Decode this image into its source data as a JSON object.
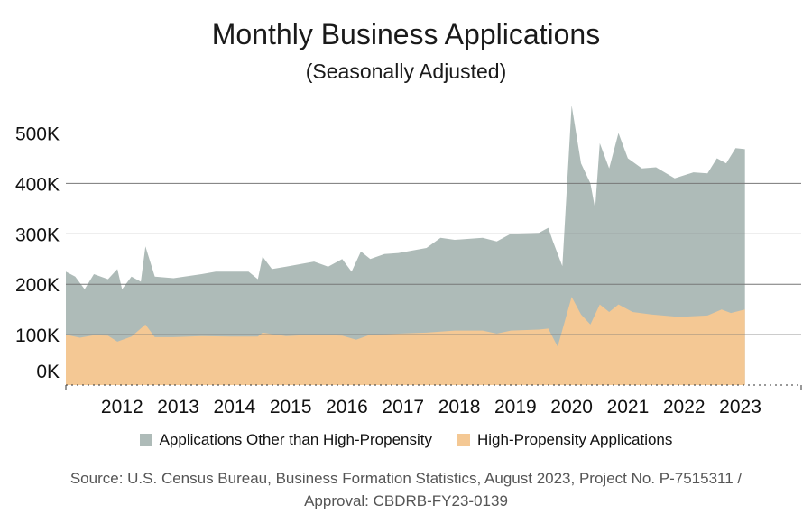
{
  "colors": {
    "other": "#aebbb8",
    "high_propensity": "#f4c894",
    "gridline": "#777777"
  },
  "legend": {
    "other_label": "Applications Other than High-Propensity",
    "high_label": "High-Propensity Applications"
  },
  "source": {
    "line1": "Source: U.S. Census Bureau, Business Formation Statistics, August 2023, Project No. P-7515311 /",
    "line2": "Approval: CBDRB-FY23-0139"
  },
  "chart_data": {
    "type": "area",
    "stacked": true,
    "title": "Monthly Business Applications",
    "subtitle": "(Seasonally Adjusted)",
    "xlabel": "",
    "ylabel": "",
    "ylim": [
      0,
      560000
    ],
    "yticks": [
      {
        "value": 0,
        "label": "0K"
      },
      {
        "value": 100000,
        "label": "100K"
      },
      {
        "value": 200000,
        "label": "200K"
      },
      {
        "value": 300000,
        "label": "300K"
      },
      {
        "value": 400000,
        "label": "400K"
      },
      {
        "value": 500000,
        "label": "500K"
      }
    ],
    "xticks": [
      "2012",
      "2013",
      "2014",
      "2015",
      "2016",
      "2017",
      "2018",
      "2019",
      "2020",
      "2021",
      "2022",
      "2023"
    ],
    "x_start": "2011-07",
    "x_end": "2023-08",
    "legend_position": "bottom",
    "series": [
      {
        "name": "High-Propensity Applications",
        "points": [
          [
            "2011-07",
            100000
          ],
          [
            "2011-10",
            94000
          ],
          [
            "2012-01",
            99000
          ],
          [
            "2012-04",
            98000
          ],
          [
            "2012-06",
            86000
          ],
          [
            "2012-09",
            96000
          ],
          [
            "2012-12",
            120000
          ],
          [
            "2013-02",
            95000
          ],
          [
            "2013-06",
            95000
          ],
          [
            "2013-12",
            97000
          ],
          [
            "2014-06",
            96000
          ],
          [
            "2014-12",
            96000
          ],
          [
            "2015-01",
            104000
          ],
          [
            "2015-06",
            97000
          ],
          [
            "2015-12",
            100000
          ],
          [
            "2016-06",
            98000
          ],
          [
            "2016-09",
            90000
          ],
          [
            "2016-12",
            100000
          ],
          [
            "2017-06",
            102000
          ],
          [
            "2017-12",
            104000
          ],
          [
            "2018-06",
            108000
          ],
          [
            "2018-12",
            108000
          ],
          [
            "2019-03",
            102000
          ],
          [
            "2019-06",
            108000
          ],
          [
            "2019-12",
            110000
          ],
          [
            "2020-02",
            112000
          ],
          [
            "2020-04",
            76000
          ],
          [
            "2020-07",
            175000
          ],
          [
            "2020-09",
            140000
          ],
          [
            "2020-11",
            120000
          ],
          [
            "2021-01",
            160000
          ],
          [
            "2021-03",
            145000
          ],
          [
            "2021-05",
            160000
          ],
          [
            "2021-08",
            145000
          ],
          [
            "2021-12",
            140000
          ],
          [
            "2022-06",
            135000
          ],
          [
            "2022-12",
            138000
          ],
          [
            "2023-03",
            150000
          ],
          [
            "2023-05",
            143000
          ],
          [
            "2023-08",
            150000
          ]
        ]
      },
      {
        "name": "Applications Other than High-Propensity",
        "points_total": [
          [
            "2011-07",
            225000
          ],
          [
            "2011-09",
            215000
          ],
          [
            "2011-11",
            190000
          ],
          [
            "2012-01",
            220000
          ],
          [
            "2012-04",
            210000
          ],
          [
            "2012-06",
            230000
          ],
          [
            "2012-07",
            190000
          ],
          [
            "2012-09",
            215000
          ],
          [
            "2012-11",
            205000
          ],
          [
            "2012-12",
            275000
          ],
          [
            "2013-02",
            215000
          ],
          [
            "2013-06",
            212000
          ],
          [
            "2013-12",
            220000
          ],
          [
            "2014-03",
            225000
          ],
          [
            "2014-06",
            225000
          ],
          [
            "2014-10",
            225000
          ],
          [
            "2014-12",
            210000
          ],
          [
            "2015-01",
            255000
          ],
          [
            "2015-03",
            230000
          ],
          [
            "2015-06",
            235000
          ],
          [
            "2015-12",
            245000
          ],
          [
            "2016-03",
            235000
          ],
          [
            "2016-06",
            250000
          ],
          [
            "2016-08",
            225000
          ],
          [
            "2016-10",
            265000
          ],
          [
            "2016-12",
            250000
          ],
          [
            "2017-03",
            260000
          ],
          [
            "2017-06",
            262000
          ],
          [
            "2017-12",
            272000
          ],
          [
            "2018-03",
            292000
          ],
          [
            "2018-06",
            288000
          ],
          [
            "2018-12",
            292000
          ],
          [
            "2019-03",
            285000
          ],
          [
            "2019-06",
            300000
          ],
          [
            "2019-12",
            302000
          ],
          [
            "2020-02",
            312000
          ],
          [
            "2020-03",
            285000
          ],
          [
            "2020-05",
            236000
          ],
          [
            "2020-07",
            555000
          ],
          [
            "2020-09",
            440000
          ],
          [
            "2020-11",
            400000
          ],
          [
            "2020-12",
            350000
          ],
          [
            "2021-01",
            480000
          ],
          [
            "2021-03",
            430000
          ],
          [
            "2021-05",
            500000
          ],
          [
            "2021-07",
            450000
          ],
          [
            "2021-10",
            430000
          ],
          [
            "2022-01",
            432000
          ],
          [
            "2022-05",
            410000
          ],
          [
            "2022-09",
            422000
          ],
          [
            "2022-12",
            420000
          ],
          [
            "2023-02",
            450000
          ],
          [
            "2023-04",
            440000
          ],
          [
            "2023-06",
            470000
          ],
          [
            "2023-08",
            468000
          ]
        ]
      }
    ]
  }
}
